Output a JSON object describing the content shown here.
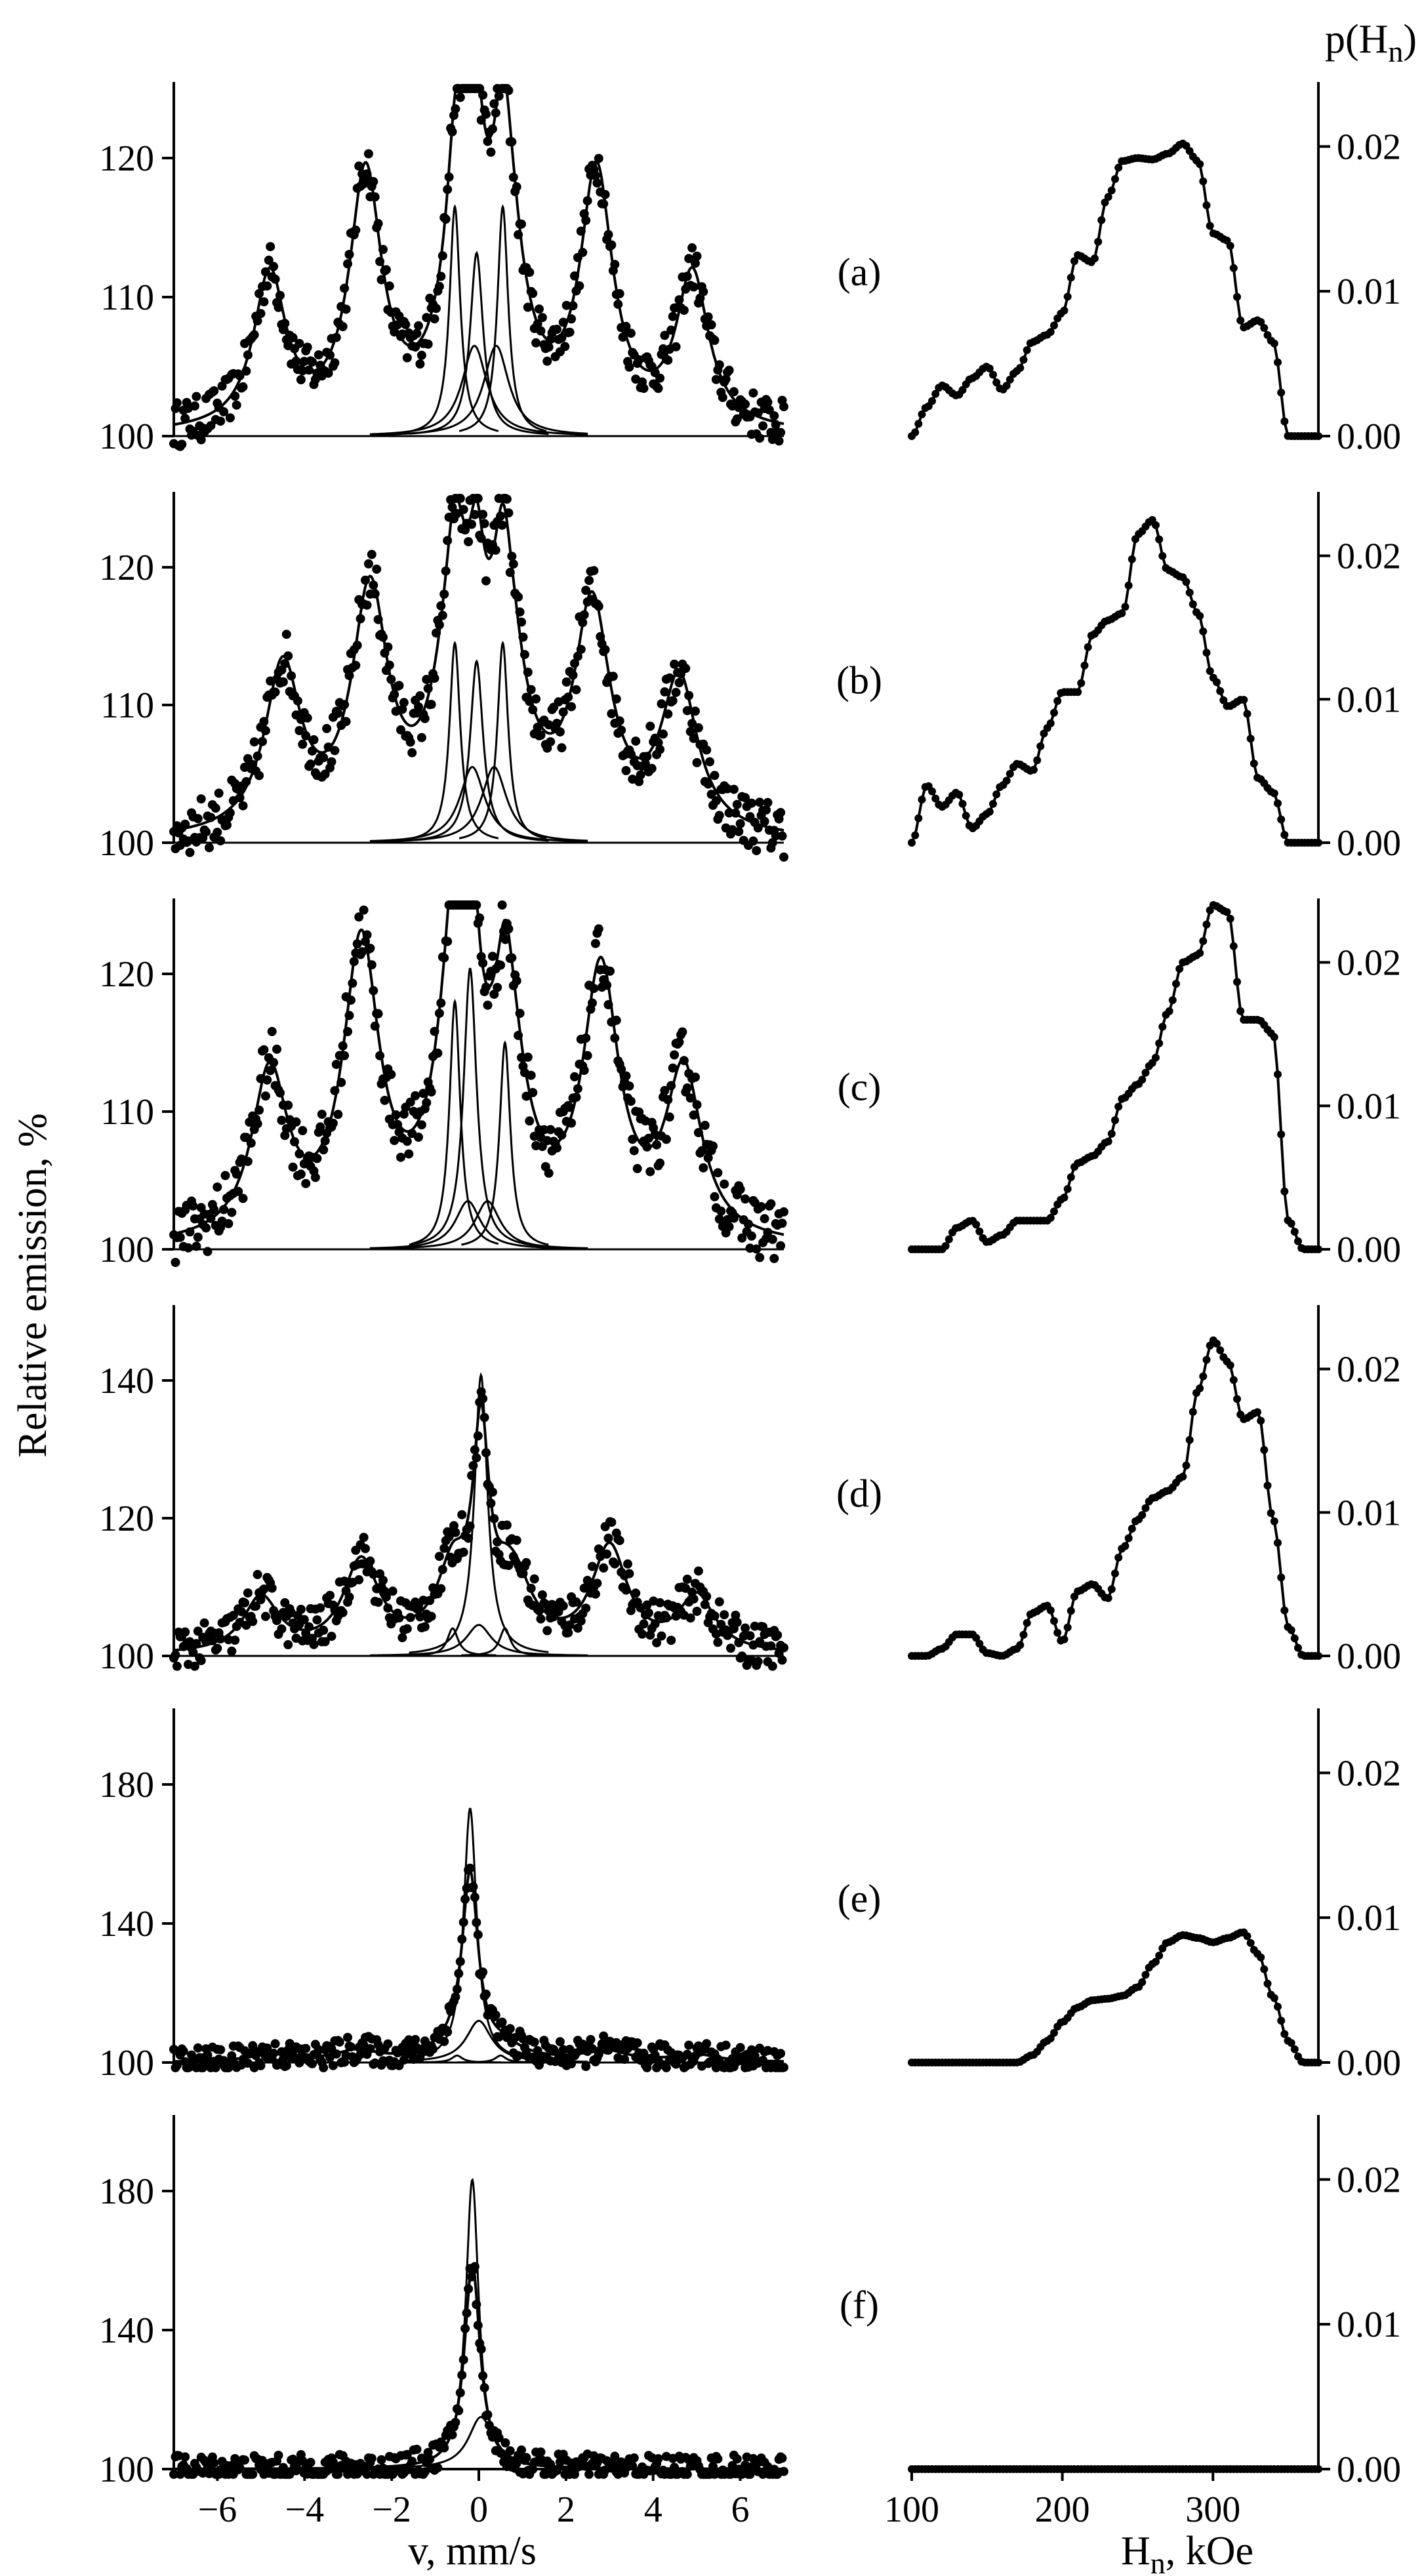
{
  "figure": {
    "y_axis_title": "Relative emission, %",
    "x_axis_title_left": "v, mm/s",
    "x_axis_title_right_base": "H",
    "x_axis_title_right_sub": "n",
    "x_axis_title_right_unit": ", kOe",
    "right_axis_title_base": "p(H",
    "right_axis_title_sub": "n",
    "right_axis_title_end": ")"
  },
  "chart_data": [
    {
      "panel": "(a)",
      "side": "left",
      "type": "scatter",
      "xlim": [
        -7,
        7
      ],
      "ylim": [
        100,
        125
      ],
      "xticks": [
        "−6",
        "−4",
        "−2",
        "0",
        "2",
        "4",
        "6"
      ],
      "yticks": [
        "100",
        "110",
        "120"
      ],
      "sextet": {
        "centers": [
          -4.8,
          -2.6,
          -0.4,
          0.6,
          2.7,
          4.9
        ],
        "heights": [
          11,
          18,
          16,
          16,
          18,
          11
        ],
        "width": 0.45
      },
      "doublet_peaks": [
        [
          -0.55,
          16.5
        ],
        [
          0.55,
          16.5
        ]
      ],
      "singlet_peaks": [
        [
          -0.05,
          15.5
        ]
      ],
      "components_small": [
        [
          -0.1,
          6.5
        ],
        [
          0.4,
          6.5
        ]
      ],
      "noise": 1.2
    },
    {
      "panel": "(a)",
      "side": "right",
      "type": "line",
      "xlim": [
        100,
        370
      ],
      "ylim": [
        0,
        0.024
      ],
      "xticks": [
        "100",
        "200",
        "300"
      ],
      "yticks": [
        "0.00",
        "0.01",
        "0.02"
      ],
      "x": [
        100,
        110,
        120,
        130,
        140,
        150,
        160,
        170,
        180,
        190,
        200,
        210,
        220,
        230,
        240,
        250,
        260,
        270,
        280,
        290,
        300,
        310,
        320,
        330,
        340,
        350,
        360,
        370
      ],
      "y": [
        0,
        0.002,
        0.0035,
        0.0028,
        0.004,
        0.0048,
        0.0032,
        0.0045,
        0.0065,
        0.007,
        0.0085,
        0.0125,
        0.012,
        0.0165,
        0.019,
        0.0192,
        0.0191,
        0.0195,
        0.0202,
        0.019,
        0.014,
        0.0135,
        0.0075,
        0.008,
        0.0065,
        0.0,
        0.0,
        0.0
      ]
    },
    {
      "panel": "(b)",
      "side": "left",
      "type": "scatter",
      "xlim": [
        -7,
        7
      ],
      "ylim": [
        100,
        125
      ],
      "xticks": [
        "−6",
        "−4",
        "−2",
        "0",
        "2",
        "4",
        "6"
      ],
      "yticks": [
        "100",
        "110",
        "120"
      ],
      "sextet": {
        "centers": [
          -4.5,
          -2.5,
          -0.55,
          0.6,
          2.6,
          4.6
        ],
        "heights": [
          12,
          17,
          15,
          15,
          16,
          11
        ],
        "width": 0.5
      },
      "doublet_peaks": [
        [
          -0.55,
          14.5
        ],
        [
          0.55,
          14.5
        ]
      ],
      "singlet_peaks": [
        [
          -0.05,
          15.5
        ]
      ],
      "components_small": [
        [
          -0.15,
          5.5
        ],
        [
          0.35,
          5.5
        ]
      ],
      "noise": 1.4
    },
    {
      "panel": "(b)",
      "side": "right",
      "type": "line",
      "xlim": [
        100,
        370
      ],
      "ylim": [
        0,
        0.024
      ],
      "xticks": [
        "100",
        "200",
        "300"
      ],
      "yticks": [
        "0.00",
        "0.01",
        "0.02"
      ],
      "x": [
        100,
        110,
        120,
        130,
        140,
        150,
        160,
        170,
        180,
        190,
        200,
        210,
        220,
        230,
        240,
        250,
        260,
        270,
        280,
        290,
        300,
        310,
        320,
        330,
        340,
        350,
        360,
        370
      ],
      "y": [
        0,
        0.004,
        0.0025,
        0.0035,
        0.001,
        0.002,
        0.004,
        0.0055,
        0.005,
        0.008,
        0.0105,
        0.0105,
        0.0145,
        0.0155,
        0.016,
        0.0215,
        0.0225,
        0.019,
        0.0185,
        0.016,
        0.0115,
        0.0095,
        0.01,
        0.0045,
        0.0035,
        0,
        0,
        0
      ]
    },
    {
      "panel": "(c)",
      "side": "left",
      "type": "scatter",
      "xlim": [
        -7,
        7
      ],
      "ylim": [
        100,
        125
      ],
      "xticks": [
        "−6",
        "−4",
        "−2",
        "0",
        "2",
        "4",
        "6"
      ],
      "yticks": [
        "100",
        "110",
        "120"
      ],
      "sextet": {
        "centers": [
          -4.8,
          -2.7,
          -0.55,
          0.65,
          2.8,
          4.7
        ],
        "heights": [
          12,
          21,
          17,
          14,
          19,
          12
        ],
        "width": 0.5
      },
      "doublet_peaks": [
        [
          -0.55,
          18
        ],
        [
          0.6,
          15
        ]
      ],
      "singlet_peaks": [
        [
          -0.2,
          24
        ]
      ],
      "components_small": [
        [
          -0.25,
          3.5
        ],
        [
          0.2,
          3.5
        ]
      ],
      "noise": 1.6
    },
    {
      "panel": "(c)",
      "side": "right",
      "type": "line",
      "xlim": [
        100,
        370
      ],
      "ylim": [
        0,
        0.024
      ],
      "xticks": [
        "100",
        "200",
        "300"
      ],
      "yticks": [
        "0.00",
        "0.01",
        "0.02"
      ],
      "x": [
        100,
        110,
        120,
        130,
        140,
        150,
        160,
        170,
        180,
        190,
        200,
        210,
        220,
        230,
        240,
        250,
        260,
        270,
        280,
        290,
        300,
        310,
        320,
        330,
        340,
        350,
        360,
        370
      ],
      "y": [
        0,
        0,
        0,
        0.0015,
        0.002,
        0.0005,
        0.001,
        0.002,
        0.002,
        0.002,
        0.0035,
        0.006,
        0.0065,
        0.0075,
        0.0105,
        0.0115,
        0.013,
        0.0165,
        0.02,
        0.0205,
        0.024,
        0.0235,
        0.016,
        0.016,
        0.015,
        0.002,
        0,
        0
      ]
    },
    {
      "panel": "(d)",
      "side": "left",
      "type": "scatter",
      "xlim": [
        -7,
        7
      ],
      "ylim": [
        100,
        150
      ],
      "xticks": [
        "−6",
        "−4",
        "−2",
        "0",
        "2",
        "4",
        "6"
      ],
      "yticks": [
        "100",
        "120",
        "140"
      ],
      "sextet": {
        "centers": [
          -5.0,
          -2.7,
          -0.6,
          0.8,
          3.0,
          5.0
        ],
        "heights": [
          8,
          13,
          10,
          10,
          15,
          8
        ],
        "width": 0.5
      },
      "doublet_peaks": [
        [
          -0.6,
          4
        ],
        [
          0.6,
          4
        ]
      ],
      "singlet_peaks": [
        [
          0.05,
          48
        ]
      ],
      "components_small": [
        [
          0.0,
          4.5
        ]
      ],
      "noise": 1.8
    },
    {
      "panel": "(d)",
      "side": "right",
      "type": "line",
      "xlim": [
        100,
        370
      ],
      "ylim": [
        0,
        0.024
      ],
      "xticks": [
        "100",
        "200",
        "300"
      ],
      "yticks": [
        "0.00",
        "0.01",
        "0.02"
      ],
      "x": [
        100,
        110,
        120,
        130,
        140,
        150,
        160,
        170,
        180,
        190,
        200,
        210,
        220,
        230,
        240,
        250,
        260,
        270,
        280,
        290,
        300,
        310,
        320,
        330,
        340,
        350,
        360,
        370
      ],
      "y": [
        0,
        0,
        0.0005,
        0.0015,
        0.0015,
        0.0002,
        0,
        0.0005,
        0.003,
        0.0035,
        0.001,
        0.0045,
        0.005,
        0.004,
        0.0075,
        0.0095,
        0.011,
        0.0115,
        0.0125,
        0.0185,
        0.022,
        0.0205,
        0.0165,
        0.017,
        0.0095,
        0.002,
        0,
        0
      ]
    },
    {
      "panel": "(e)",
      "side": "left",
      "type": "scatter",
      "xlim": [
        -7,
        7
      ],
      "ylim": [
        100,
        200
      ],
      "xticks": [
        "−6",
        "−4",
        "−2",
        "0",
        "2",
        "4",
        "6"
      ],
      "yticks": [
        "100",
        "140",
        "180"
      ],
      "sextet": {
        "centers": [
          -4.8,
          -2.8,
          -0.6,
          0.6,
          2.9,
          5.0
        ],
        "heights": [
          2,
          3,
          3,
          3,
          3,
          2
        ],
        "width": 0.6
      },
      "doublet_peaks": [
        [
          -0.5,
          2
        ],
        [
          0.5,
          2
        ]
      ],
      "singlet_peaks": [
        [
          -0.2,
          86
        ]
      ],
      "components_small": [
        [
          0.0,
          12
        ]
      ],
      "noise": 1.5
    },
    {
      "panel": "(e)",
      "side": "right",
      "type": "line",
      "xlim": [
        100,
        370
      ],
      "ylim": [
        0,
        0.024
      ],
      "xticks": [
        "100",
        "200",
        "300"
      ],
      "yticks": [
        "0.00",
        "0.01",
        "0.02"
      ],
      "x": [
        100,
        110,
        120,
        130,
        140,
        150,
        160,
        170,
        180,
        190,
        200,
        210,
        220,
        230,
        240,
        250,
        260,
        270,
        280,
        290,
        300,
        310,
        320,
        330,
        340,
        350,
        360,
        370
      ],
      "y": [
        0,
        0,
        0,
        0,
        0,
        0,
        0,
        0,
        0.0005,
        0.0015,
        0.0028,
        0.0038,
        0.0043,
        0.0044,
        0.0046,
        0.0052,
        0.0068,
        0.0083,
        0.0088,
        0.0086,
        0.0083,
        0.0086,
        0.009,
        0.0075,
        0.0045,
        0.0015,
        0,
        0
      ]
    },
    {
      "panel": "(f)",
      "side": "left",
      "type": "scatter",
      "xlim": [
        -7,
        7
      ],
      "ylim": [
        100,
        200
      ],
      "xticks": [
        "−6",
        "−4",
        "−2",
        "0",
        "2",
        "4",
        "6"
      ],
      "yticks": [
        "100",
        "140",
        "180"
      ],
      "sextet": {
        "centers": [],
        "heights": [],
        "width": 0.6
      },
      "doublet_peaks": [],
      "singlet_peaks": [
        [
          -0.15,
          98
        ]
      ],
      "components_small": [
        [
          0.05,
          15
        ]
      ],
      "noise": 1.5
    },
    {
      "panel": "(f)",
      "side": "right",
      "type": "line",
      "xlim": [
        100,
        370
      ],
      "ylim": [
        0,
        0.024
      ],
      "xticks": [
        "100",
        "200",
        "300"
      ],
      "yticks": [
        "0.00",
        "0.01",
        "0.02"
      ],
      "x": [
        100,
        370
      ],
      "y": [
        0,
        0
      ]
    }
  ]
}
